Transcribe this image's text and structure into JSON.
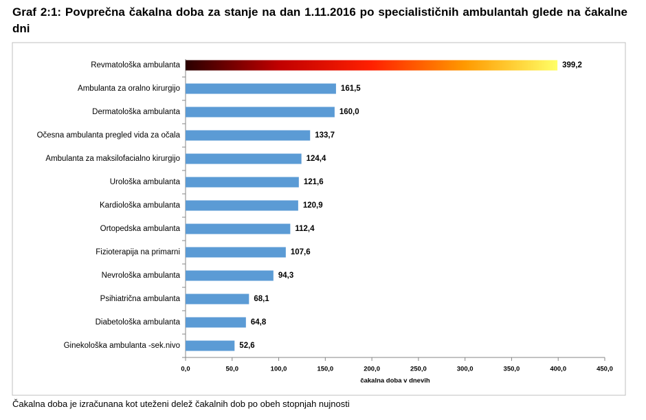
{
  "chart_data": {
    "type": "bar",
    "orientation": "horizontal",
    "title": "Graf 2:1: Povprečna čakalna doba za stanje na dan 1.11.2016 po specialističnih ambulantah glede na čakalne dni",
    "footnote": "Čakalna doba je izračunana kot uteženi delež čakalnih dob po obeh stopnjah nujnosti",
    "x_label": "čakalna doba v dnevih",
    "categories": [
      "Revmatološka ambulanta",
      "Ambulanta za oralno kirurgijo",
      "Dermatološka ambulanta",
      "Očesna ambulanta  pregled vida za očala",
      "Ambulanta za maksilofacialno kirurgijo",
      "Urološka ambulanta",
      "Kardiološka ambulanta",
      "Ortopedska ambulanta",
      "Fizioterapija na primarni",
      "Nevrološka ambulanta",
      "Psihiatrična ambulanta",
      "Diabetološka ambulanta",
      "Ginekološka ambulanta -sek.nivo"
    ],
    "values": [
      399.2,
      161.5,
      160.0,
      133.7,
      124.4,
      121.6,
      120.9,
      112.4,
      107.6,
      94.3,
      68.1,
      64.8,
      52.6
    ],
    "value_labels": [
      "399,2",
      "161,5",
      "160,0",
      "133,7",
      "124,4",
      "121,6",
      "120,9",
      "112,4",
      "107,6",
      "94,3",
      "68,1",
      "64,8",
      "52,6"
    ],
    "color": "#5b9bd5",
    "first_bar_gradient": [
      "#2a0000",
      "#c00000",
      "#ff2000",
      "#ff9900",
      "#ffff66"
    ],
    "xlim": [
      0,
      450
    ],
    "xticks": [
      {
        "value": 0,
        "label": "0,0"
      },
      {
        "value": 50,
        "label": "50,0"
      },
      {
        "value": 100,
        "label": "100,0"
      },
      {
        "value": 150,
        "label": "150,0"
      },
      {
        "value": 200,
        "label": "200,0"
      },
      {
        "value": 250,
        "label": "250,0"
      },
      {
        "value": 300,
        "label": "300,0"
      },
      {
        "value": 350,
        "label": "350,0"
      },
      {
        "value": 400,
        "label": "400,0"
      },
      {
        "value": 450,
        "label": "450,0"
      }
    ],
    "grid": false
  }
}
